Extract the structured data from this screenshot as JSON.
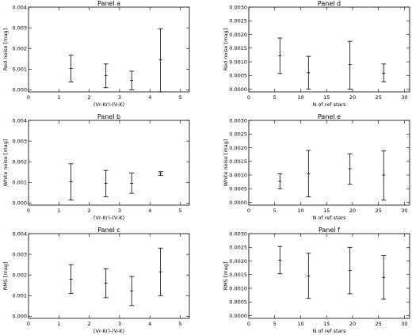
{
  "chart_data": [
    {
      "type": "errorbar",
      "title": "Panel a",
      "xlabel": "(Vr-Kr)-(V-K)",
      "ylabel": "Red noise [mag]",
      "xlim": [
        0,
        5.3
      ],
      "ylim": [
        -0.0001,
        0.004
      ],
      "xticks": [
        0,
        1,
        2,
        3,
        4,
        5
      ],
      "yticks": [
        0.0,
        0.001,
        0.002,
        0.003,
        0.004
      ],
      "ytick_labels": [
        "0.000",
        "0.001",
        "0.002",
        "0.003",
        "0.004"
      ],
      "points": [
        {
          "x": 1.4,
          "y": 0.00103,
          "lo": 0.00038,
          "hi": 0.00167
        },
        {
          "x": 2.55,
          "y": 0.00068,
          "lo": 0.0001,
          "hi": 0.00125
        },
        {
          "x": 3.4,
          "y": 0.00045,
          "lo": 0.0,
          "hi": 0.0009
        },
        {
          "x": 4.35,
          "y": 0.00145,
          "lo": -0.0001,
          "hi": 0.00295
        }
      ]
    },
    {
      "type": "errorbar",
      "title": "Panel d",
      "xlabel": "N of ref stars",
      "ylabel": "Red noise [mag]",
      "xlim": [
        0,
        31
      ],
      "ylim": [
        -0.0001,
        0.003
      ],
      "xticks": [
        0,
        5,
        10,
        15,
        20,
        25,
        30
      ],
      "yticks": [
        0.0,
        0.0005,
        0.001,
        0.0015,
        0.002,
        0.0025,
        0.003
      ],
      "ytick_labels": [
        "0.0000",
        "0.0005",
        "0.0010",
        "0.0015",
        "0.0020",
        "0.0025",
        "0.0030"
      ],
      "points": [
        {
          "x": 6,
          "y": 0.00122,
          "lo": 0.00057,
          "hi": 0.00187
        },
        {
          "x": 11.5,
          "y": 0.0006,
          "lo": 0.0,
          "hi": 0.0012
        },
        {
          "x": 19.5,
          "y": 0.0009,
          "lo": 0.0,
          "hi": 0.00175
        },
        {
          "x": 26,
          "y": 0.00058,
          "lo": 0.00027,
          "hi": 0.00092
        }
      ]
    },
    {
      "type": "errorbar",
      "title": "Panel b",
      "xlabel": "(Vr-Kr)-(V-K)",
      "ylabel": "White noise [mag]",
      "xlim": [
        0,
        5.3
      ],
      "ylim": [
        -0.0001,
        0.004
      ],
      "xticks": [
        0,
        1,
        2,
        3,
        4,
        5
      ],
      "yticks": [
        0.0,
        0.001,
        0.002,
        0.003,
        0.004
      ],
      "ytick_labels": [
        "0.000",
        "0.001",
        "0.002",
        "0.003",
        "0.004"
      ],
      "points": [
        {
          "x": 1.4,
          "y": 0.00103,
          "lo": 0.00015,
          "hi": 0.0019
        },
        {
          "x": 2.55,
          "y": 0.00095,
          "lo": 0.0003,
          "hi": 0.00158
        },
        {
          "x": 3.4,
          "y": 0.00095,
          "lo": 0.00047,
          "hi": 0.00145
        },
        {
          "x": 4.35,
          "y": 0.00143,
          "lo": 0.00133,
          "hi": 0.00152
        }
      ]
    },
    {
      "type": "errorbar",
      "title": "Panel e",
      "xlabel": "N of ref stars",
      "ylabel": "White noise [mag]",
      "xlim": [
        0,
        31
      ],
      "ylim": [
        -0.0001,
        0.003
      ],
      "xticks": [
        0,
        5,
        10,
        15,
        20,
        25,
        30
      ],
      "yticks": [
        0.0,
        0.0005,
        0.001,
        0.0015,
        0.002,
        0.0025,
        0.003
      ],
      "ytick_labels": [
        "0.0000",
        "0.0005",
        "0.0010",
        "0.0015",
        "0.0020",
        "0.0025",
        "0.0030"
      ],
      "points": [
        {
          "x": 6,
          "y": 0.00077,
          "lo": 0.0005,
          "hi": 0.00105
        },
        {
          "x": 11.5,
          "y": 0.00105,
          "lo": 0.0002,
          "hi": 0.0019
        },
        {
          "x": 19.5,
          "y": 0.00123,
          "lo": 0.00067,
          "hi": 0.00178
        },
        {
          "x": 26,
          "y": 0.001,
          "lo": 8e-05,
          "hi": 0.00188
        }
      ]
    },
    {
      "type": "errorbar",
      "title": "Panel c",
      "xlabel": "(Vr-Kr)-(V-K)",
      "ylabel": "RMS [mag]",
      "xlim": [
        0,
        5.3
      ],
      "ylim": [
        -0.0001,
        0.004
      ],
      "xticks": [
        0,
        1,
        2,
        3,
        4,
        5
      ],
      "yticks": [
        0.0,
        0.001,
        0.002,
        0.003,
        0.004
      ],
      "ytick_labels": [
        "0.000",
        "0.001",
        "0.002",
        "0.003",
        "0.004"
      ],
      "points": [
        {
          "x": 1.4,
          "y": 0.0018,
          "lo": 0.0011,
          "hi": 0.0025
        },
        {
          "x": 2.55,
          "y": 0.0016,
          "lo": 0.0009,
          "hi": 0.0023
        },
        {
          "x": 3.4,
          "y": 0.00123,
          "lo": 0.00052,
          "hi": 0.00193
        },
        {
          "x": 4.35,
          "y": 0.00215,
          "lo": 0.001,
          "hi": 0.0033
        }
      ]
    },
    {
      "type": "errorbar",
      "title": "Panel f",
      "xlabel": "N of ref stars",
      "ylabel": "RMS [mag]",
      "xlim": [
        0,
        31
      ],
      "ylim": [
        -0.0001,
        0.003
      ],
      "xticks": [
        0,
        5,
        10,
        15,
        20,
        25,
        30
      ],
      "yticks": [
        0.0,
        0.0005,
        0.001,
        0.0015,
        0.002,
        0.0025,
        0.003
      ],
      "ytick_labels": [
        "0.0000",
        "0.0005",
        "0.0010",
        "0.0015",
        "0.0020",
        "0.0025",
        "0.0030"
      ],
      "points": [
        {
          "x": 6,
          "y": 0.00203,
          "lo": 0.00153,
          "hi": 0.00253
        },
        {
          "x": 11.5,
          "y": 0.00145,
          "lo": 0.00063,
          "hi": 0.00228
        },
        {
          "x": 19.5,
          "y": 0.00165,
          "lo": 0.0008,
          "hi": 0.0025
        },
        {
          "x": 26,
          "y": 0.0014,
          "lo": 0.0006,
          "hi": 0.0022
        }
      ]
    }
  ]
}
